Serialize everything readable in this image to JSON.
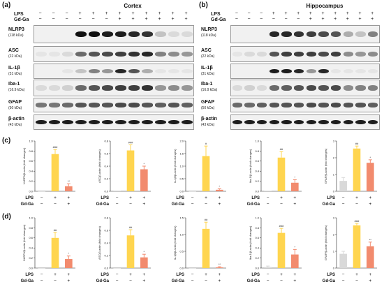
{
  "panels": {
    "a": {
      "letter": "(a)",
      "title": "Cortex"
    },
    "b": {
      "letter": "(b)",
      "title": "Hippocampus"
    },
    "c": {
      "letter": "(c)"
    },
    "d": {
      "letter": "(d)"
    }
  },
  "blot_conditions": {
    "lps_label": "LPS",
    "gdga_label": "Gd-Ga",
    "lps": [
      "−",
      "−",
      "−",
      "+",
      "+",
      "+",
      "+",
      "+",
      "+",
      "+",
      "+",
      "+"
    ],
    "gdga": [
      "−",
      "−",
      "−",
      "−",
      "−",
      "−",
      "+",
      "+",
      "+",
      "+",
      "+",
      "+"
    ]
  },
  "blot_markers": [
    {
      "name": "NLRP3",
      "size": "(118 kDa)"
    },
    {
      "name": "ASC",
      "size": "(22 kDa)"
    },
    {
      "name": "IL-1β",
      "size": "(31 kDa)"
    },
    {
      "name": "Iba-1",
      "size": "(16.9 kDa)"
    },
    {
      "name": "GFAP",
      "size": "(50 kDa)"
    },
    {
      "name": "β-actin",
      "size": "(43 kDa)"
    }
  ],
  "blot_band_intensity": {
    "cortex": {
      "NLRP3": [
        0,
        0,
        0,
        1,
        1,
        0.95,
        0.95,
        0.9,
        0.85,
        0.2,
        0.1,
        0.1
      ],
      "ASC": [
        0.05,
        0.05,
        0.1,
        0.6,
        0.7,
        0.75,
        0.8,
        0.85,
        0.9,
        0.5,
        0.45,
        0.4
      ],
      "IL-1β": [
        0,
        0,
        0.05,
        0.2,
        0.5,
        0.4,
        0.9,
        0.7,
        0.3,
        0.05,
        0.05,
        0.05
      ],
      "Iba-1": [
        0.1,
        0.1,
        0.15,
        0.6,
        0.7,
        0.75,
        0.8,
        0.8,
        0.85,
        0.4,
        0.45,
        0.4
      ],
      "GFAP": [
        0.55,
        0.55,
        0.6,
        0.7,
        0.7,
        0.7,
        0.75,
        0.75,
        0.7,
        0.65,
        0.7,
        0.65
      ],
      "β-actin": [
        0.95,
        0.95,
        0.95,
        0.95,
        0.95,
        0.95,
        0.95,
        0.95,
        0.95,
        0.95,
        0.95,
        0.95
      ]
    },
    "hippocampus": {
      "NLRP3": [
        0,
        0,
        0,
        0.9,
        0.9,
        0.85,
        0.8,
        0.75,
        0.7,
        0.3,
        0.2,
        0.5
      ],
      "ASC": [
        0.05,
        0.1,
        0.1,
        0.7,
        0.8,
        0.8,
        0.8,
        0.75,
        0.8,
        0.45,
        0.4,
        0.45
      ],
      "IL-1β": [
        0,
        0,
        0,
        0.95,
        0.95,
        0.9,
        0.4,
        0.9,
        0.05,
        0.05,
        0.05,
        0.05
      ],
      "Iba-1": [
        0.1,
        0.15,
        0.1,
        0.6,
        0.65,
        0.7,
        0.75,
        0.7,
        0.75,
        0.45,
        0.5,
        0.5
      ],
      "GFAP": [
        0.6,
        0.6,
        0.65,
        0.7,
        0.7,
        0.7,
        0.75,
        0.7,
        0.75,
        0.7,
        0.7,
        0.65
      ],
      "β-actin": [
        0.95,
        0.95,
        0.95,
        0.95,
        0.95,
        0.95,
        0.95,
        0.95,
        0.95,
        0.95,
        0.95,
        0.95
      ]
    }
  },
  "bar_conditions": {
    "lps_label": "LPS",
    "gdga_label": "Gd-Ga",
    "lps": [
      "−",
      "+",
      "+"
    ],
    "gdga": [
      "−",
      "−",
      "+"
    ]
  },
  "colors": {
    "control": "#d9d9d9",
    "lps": "#ffd54f",
    "gdga": "#f28b6e"
  },
  "chart_data": [
    {
      "type": "bar",
      "panel": "c",
      "ylabel": "NLRP3/β-actin (fold changes)",
      "ylim": [
        0,
        1.0
      ],
      "yticks": [
        "0.0",
        "0.2",
        "0.4",
        "0.6",
        "0.8",
        "1.0"
      ],
      "values": [
        0.0,
        0.74,
        0.1
      ],
      "errors": [
        0,
        0.09,
        0.05
      ],
      "sig": [
        "",
        "###",
        "**"
      ]
    },
    {
      "type": "bar",
      "panel": "c",
      "ylabel": "ASC/β-actin (fold changes)",
      "ylim": [
        0,
        0.8
      ],
      "yticks": [
        "0.0",
        "0.2",
        "0.4",
        "0.6",
        "0.8"
      ],
      "values": [
        0.01,
        0.65,
        0.35
      ],
      "errors": [
        0,
        0.09,
        0.05
      ],
      "sig": [
        "",
        "###",
        "*"
      ]
    },
    {
      "type": "bar",
      "panel": "c",
      "ylabel": "IL-1β/β-actin (fold changes)",
      "ylim": [
        0,
        2.0
      ],
      "yticks": [
        "0.0",
        "0.5",
        "1.0",
        "1.5",
        "2.0"
      ],
      "values": [
        0.0,
        1.4,
        0.06
      ],
      "errors": [
        0,
        0.4,
        0.04
      ],
      "sig": [
        "",
        "#",
        "*"
      ]
    },
    {
      "type": "bar",
      "panel": "c",
      "ylabel": "Iba-1/β-actin (fold changes)",
      "ylim": [
        0,
        1.0
      ],
      "yticks": [
        "0.0",
        "0.2",
        "0.4",
        "0.6",
        "0.8",
        "1.0"
      ],
      "values": [
        0.01,
        0.67,
        0.17
      ],
      "errors": [
        0,
        0.12,
        0.06
      ],
      "sig": [
        "",
        "##",
        "*"
      ]
    },
    {
      "type": "bar",
      "panel": "c",
      "ylabel": "GFAP/β-actin (fold changes)",
      "ylim": [
        0,
        3.0
      ],
      "yticks": [
        "0",
        "1",
        "2",
        "3"
      ],
      "values": [
        0.62,
        2.55,
        1.7
      ],
      "errors": [
        0.2,
        0.15,
        0.18
      ],
      "sig": [
        "",
        "##",
        "*"
      ]
    },
    {
      "type": "bar",
      "panel": "d",
      "ylabel": "NLRP3/β-actin (fold changes)",
      "ylim": [
        0,
        1.0
      ],
      "yticks": [
        "0.0",
        "0.2",
        "0.4",
        "0.6",
        "0.8",
        "1.0"
      ],
      "values": [
        0.0,
        0.6,
        0.18
      ],
      "errors": [
        0,
        0.11,
        0.06
      ],
      "sig": [
        "",
        "##",
        "*"
      ]
    },
    {
      "type": "bar",
      "panel": "d",
      "ylabel": "ASC/β-actin (fold changes)",
      "ylim": [
        0,
        0.8
      ],
      "yticks": [
        "0.0",
        "0.2",
        "0.4",
        "0.6",
        "0.8"
      ],
      "values": [
        0.0,
        0.52,
        0.17
      ],
      "errors": [
        0,
        0.09,
        0.05
      ],
      "sig": [
        "",
        "##",
        "*"
      ]
    },
    {
      "type": "bar",
      "panel": "d",
      "ylabel": "IL-1β/β-actin (fold changes)",
      "ylim": [
        0,
        1.5
      ],
      "yticks": [
        "0.0",
        "0.5",
        "1.0",
        "1.5"
      ],
      "values": [
        0.0,
        1.17,
        0.02
      ],
      "errors": [
        0,
        0.2,
        0.02
      ],
      "sig": [
        "",
        "##",
        "**"
      ]
    },
    {
      "type": "bar",
      "panel": "d",
      "ylabel": "Iba-1/β-actin (fold changes)",
      "ylim": [
        0,
        1.0
      ],
      "yticks": [
        "0.0",
        "0.2",
        "0.4",
        "0.6",
        "0.8",
        "1.0"
      ],
      "values": [
        0.02,
        0.7,
        0.27
      ],
      "errors": [
        0.02,
        0.09,
        0.1
      ],
      "sig": [
        "",
        "###",
        "*"
      ]
    },
    {
      "type": "bar",
      "panel": "d",
      "ylabel": "GFAP/β-actin (fold changes)",
      "ylim": [
        0,
        3.0
      ],
      "yticks": [
        "0",
        "1",
        "2",
        "3"
      ],
      "values": [
        0.85,
        2.55,
        1.3
      ],
      "errors": [
        0.15,
        0.12,
        0.25
      ],
      "sig": [
        "",
        "###",
        "**"
      ]
    }
  ]
}
